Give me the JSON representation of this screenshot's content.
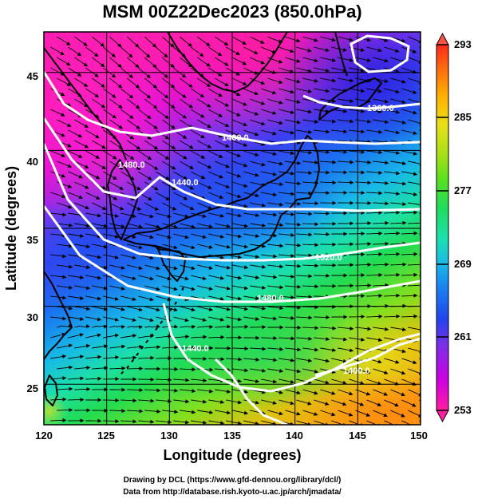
{
  "title": "MSM 00Z22Dec2023 (850.0hPa)",
  "x_axis": {
    "label": "Longitude (degrees)",
    "min": 120,
    "max": 150,
    "ticks": [
      "120",
      "125",
      "130",
      "135",
      "140",
      "145",
      "150"
    ]
  },
  "y_axis": {
    "label": "Latitude  (degrees)",
    "min": 22.4,
    "max": 47.6,
    "ticks": [
      "25",
      "30",
      "35",
      "40",
      "45"
    ]
  },
  "colorbar": {
    "min": 253,
    "max": 293,
    "ticks": [
      "293",
      "285",
      "277",
      "269",
      "261",
      "253"
    ],
    "colors": [
      "#ff1e9e",
      "#d000e0",
      "#7a2fe8",
      "#2244ee",
      "#1a7df0",
      "#1ab8e8",
      "#1ce0b0",
      "#20dc60",
      "#58e020",
      "#a8e018",
      "#e8e018",
      "#ffb000",
      "#ff7010",
      "#ff2a1a"
    ]
  },
  "contours": {
    "labels": [
      "1360.0",
      "1400.0",
      "1440.0",
      "1480.0",
      "1520.0",
      "1480.0",
      "1440.0",
      "1400.0"
    ],
    "line_color": "#ffffff"
  },
  "credits": {
    "line1": "Drawing by DCL (https://www.gfd-dennou.org/library/dcl/)",
    "line2": "Data from http://database.rish.kyoto-u.ac.jp/arch/jmadata/"
  }
}
